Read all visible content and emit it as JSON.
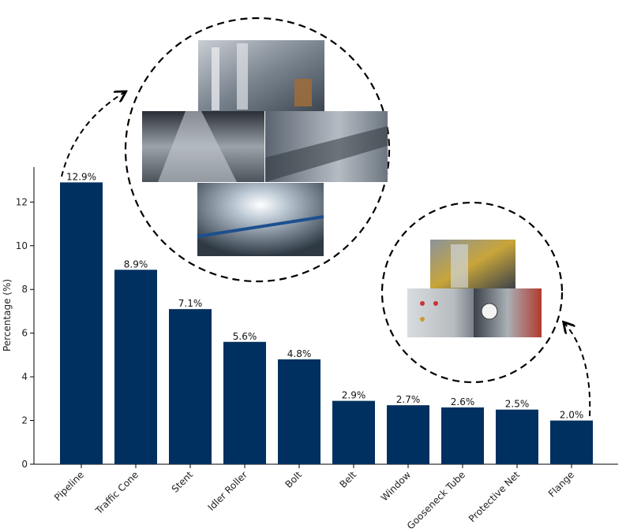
{
  "chart_data": {
    "type": "bar",
    "categories": [
      "Pipeline",
      "Traffic Cone",
      "Stent",
      "Idler Roller",
      "Bolt",
      "Belt",
      "Window",
      "Gooseneck Tube",
      "Protective Net",
      "Flange"
    ],
    "values": [
      12.9,
      8.9,
      7.1,
      5.6,
      4.8,
      2.9,
      2.7,
      2.6,
      2.5,
      2.0
    ],
    "value_labels": [
      "12.9%",
      "8.9%",
      "7.1%",
      "5.6%",
      "4.8%",
      "2.9%",
      "2.7%",
      "2.6%",
      "2.5%",
      "2.0%"
    ],
    "ylabel": "Percentage (%)",
    "xlabel": "",
    "ylim": [
      0,
      13.6
    ],
    "yticks": [
      0,
      2,
      4,
      6,
      8,
      10,
      12
    ],
    "bar_color": "#00305f",
    "grid": false,
    "legend": "none",
    "insets": [
      {
        "kind": "dashed-circle-photo-collage",
        "points_to": "Pipeline",
        "photo_count": 4
      },
      {
        "kind": "dashed-circle-photo-collage",
        "points_to": "Flange",
        "photo_count": 3
      }
    ]
  }
}
